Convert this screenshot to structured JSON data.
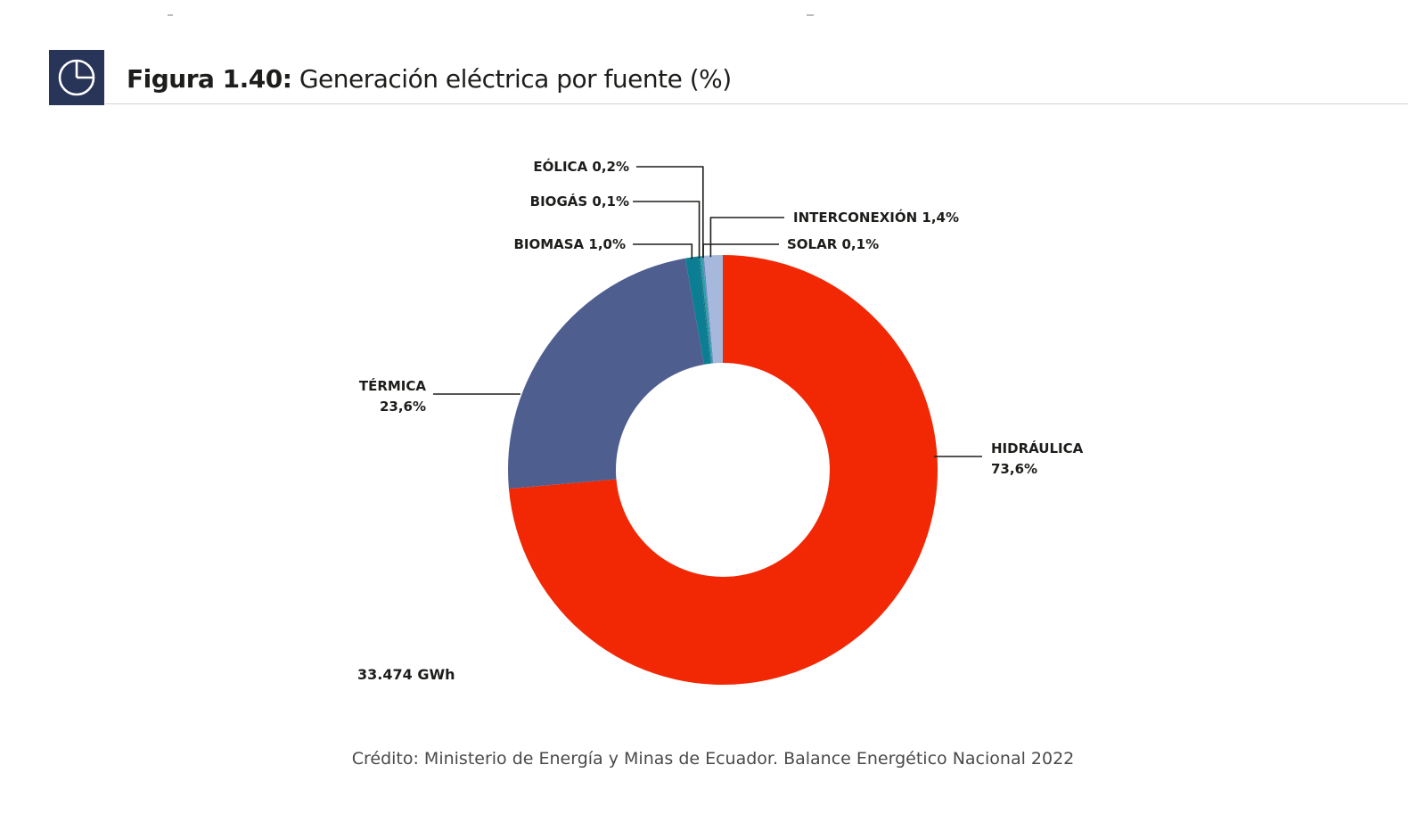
{
  "figure": {
    "label": "Figura 1.40:",
    "title": "Generación eléctrica por fuente (%)",
    "icon": "pie-chart-icon"
  },
  "chart_data": {
    "type": "pie",
    "title": "Generación eléctrica por fuente (%)",
    "total_label": "33.474 GWh",
    "slices": [
      {
        "name": "HIDRÁULICA",
        "value": 73.6,
        "value_label": "73,6%",
        "color": "#f22805"
      },
      {
        "name": "TÉRMICA",
        "value": 23.6,
        "value_label": "23,6%",
        "color": "#4e5e8f"
      },
      {
        "name": "BIOMASA",
        "value": 1.0,
        "value_label": "1,0%",
        "color": "#0c7e93"
      },
      {
        "name": "BIOGÁS",
        "value": 0.1,
        "value_label": "0,1%",
        "color": "#1b6f7a"
      },
      {
        "name": "EÓLICA",
        "value": 0.2,
        "value_label": "0,2%",
        "color": "#2b9fb0"
      },
      {
        "name": "SOLAR",
        "value": 0.1,
        "value_label": "0,1%",
        "color": "#6b86b8"
      },
      {
        "name": "INTERCONEXIÓN",
        "value": 1.4,
        "value_label": "1,4%",
        "color": "#a6b8dc"
      }
    ]
  },
  "credit": "Crédito: Ministerio de Energía y Minas de Ecuador. Balance Energético Nacional 2022"
}
